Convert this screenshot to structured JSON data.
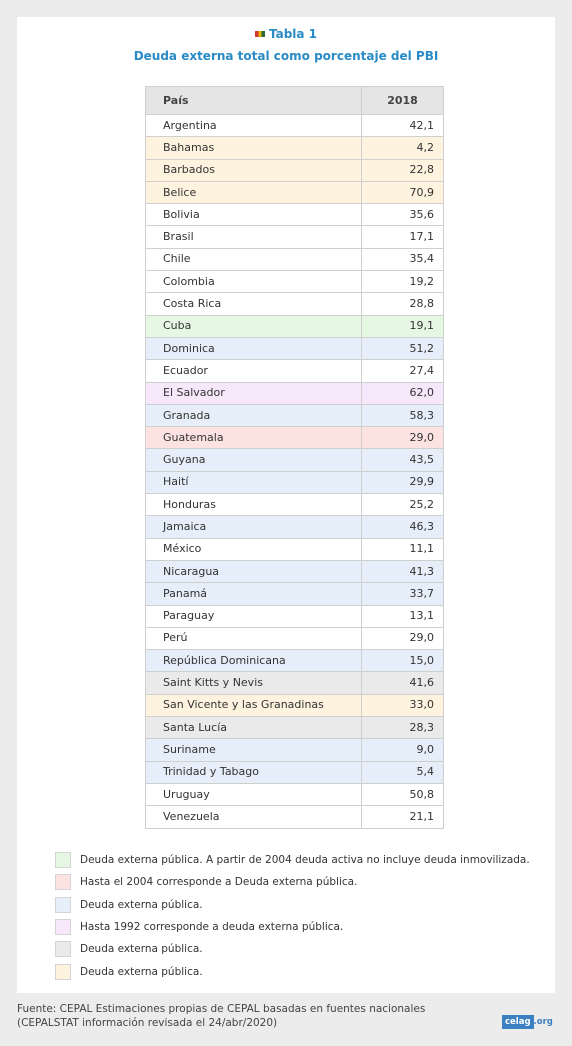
{
  "title": "Tabla 1",
  "subtitle": "Deuda externa total como porcentaje del PBI",
  "table": {
    "headers": [
      "País",
      "2018"
    ],
    "rows": [
      {
        "country": "Argentina",
        "value": "42,1",
        "color": "white"
      },
      {
        "country": "Bahamas",
        "value": "4,2",
        "color": "cream"
      },
      {
        "country": "Barbados",
        "value": "22,8",
        "color": "cream"
      },
      {
        "country": "Belice",
        "value": "70,9",
        "color": "cream"
      },
      {
        "country": "Bolivia",
        "value": "35,6",
        "color": "white"
      },
      {
        "country": "Brasil",
        "value": "17,1",
        "color": "white"
      },
      {
        "country": "Chile",
        "value": "35,4",
        "color": "white"
      },
      {
        "country": "Colombia",
        "value": "19,2",
        "color": "white"
      },
      {
        "country": "Costa Rica",
        "value": "28,8",
        "color": "white"
      },
      {
        "country": "Cuba",
        "value": "19,1",
        "color": "green"
      },
      {
        "country": "Dominica",
        "value": "51,2",
        "color": "blue"
      },
      {
        "country": "Ecuador",
        "value": "27,4",
        "color": "white"
      },
      {
        "country": "El Salvador",
        "value": "62,0",
        "color": "purple"
      },
      {
        "country": "Granada",
        "value": "58,3",
        "color": "blue"
      },
      {
        "country": "Guatemala",
        "value": "29,0",
        "color": "red"
      },
      {
        "country": "Guyana",
        "value": "43,5",
        "color": "blue"
      },
      {
        "country": "Haití",
        "value": "29,9",
        "color": "blue"
      },
      {
        "country": "Honduras",
        "value": "25,2",
        "color": "white"
      },
      {
        "country": "Jamaica",
        "value": "46,3",
        "color": "blue"
      },
      {
        "country": "México",
        "value": "11,1",
        "color": "white"
      },
      {
        "country": "Nicaragua",
        "value": "41,3",
        "color": "blue"
      },
      {
        "country": "Panamá",
        "value": "33,7",
        "color": "blue"
      },
      {
        "country": "Paraguay",
        "value": "13,1",
        "color": "white"
      },
      {
        "country": "Perú",
        "value": "29,0",
        "color": "white"
      },
      {
        "country": "República Dominicana",
        "value": "15,0",
        "color": "blue"
      },
      {
        "country": "Saint Kitts y Nevis",
        "value": "41,6",
        "color": "gray"
      },
      {
        "country": "San Vicente y las Granadinas",
        "value": "33,0",
        "color": "cream"
      },
      {
        "country": "Santa Lucía",
        "value": "28,3",
        "color": "gray"
      },
      {
        "country": "Suriname",
        "value": "9,0",
        "color": "blue"
      },
      {
        "country": "Trinidad y Tabago",
        "value": "5,4",
        "color": "blue"
      },
      {
        "country": "Uruguay",
        "value": "50,8",
        "color": "white"
      },
      {
        "country": "Venezuela",
        "value": "21,1",
        "color": "white"
      }
    ]
  },
  "legend": [
    {
      "color": "green",
      "swatch": "#e6f8e3",
      "text": "Deuda externa pública. A partir de 2004 deuda activa no incluye deuda inmovilizada."
    },
    {
      "color": "red",
      "swatch": "#fce3e1",
      "text": "Hasta el 2004 corresponde a Deuda externa pública."
    },
    {
      "color": "blue",
      "swatch": "#e5eef9",
      "text": "Deuda externa pública."
    },
    {
      "color": "purple",
      "swatch": "#f6e7fb",
      "text": "Hasta 1992 corresponde a deuda externa pública."
    },
    {
      "color": "gray",
      "swatch": "#eaeaea",
      "text": "Deuda externa pública."
    },
    {
      "color": "cream",
      "swatch": "#fdf3df",
      "text": "Deuda externa pública."
    }
  ],
  "footer": {
    "line1": "Fuente: CEPAL Estimaciones propias de CEPAL basadas en fuentes nacionales",
    "line2": "(CEPALSTAT información revisada el 24/abr/2020)"
  },
  "logo": {
    "left": "celag",
    "right": ".org"
  },
  "colors": {
    "accent": "#2a8bc6",
    "logo": "#3c80c2"
  },
  "icons": {
    "flag": "flag-icon"
  }
}
